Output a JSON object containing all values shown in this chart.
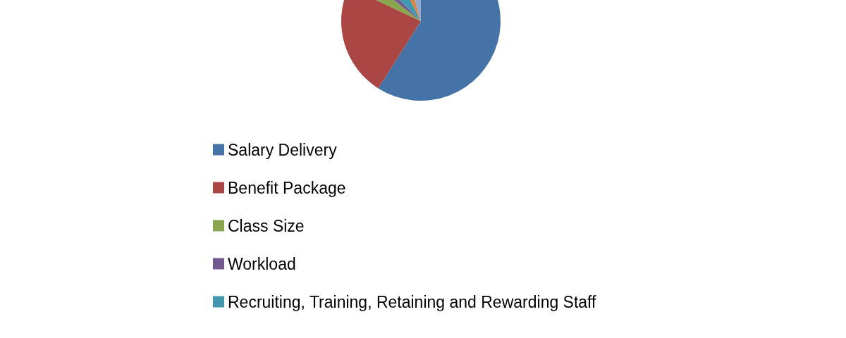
{
  "chart_data": {
    "type": "pie",
    "categories": [
      "Salary Delivery",
      "Benefit Package",
      "Class Size",
      "Workload",
      "Recruiting, Training, Retaining and Rewarding Staff",
      null,
      null
    ],
    "values": [
      59,
      23,
      3.5,
      2,
      5,
      3,
      4.5
    ],
    "colors": [
      "#4572a7",
      "#aa4643",
      "#89a54e",
      "#71588f",
      "#4198af",
      "#db843d",
      "#93a9cf"
    ],
    "legend": "bottom"
  }
}
